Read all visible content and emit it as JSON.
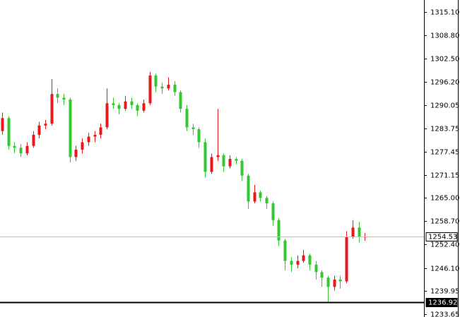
{
  "chart_data": {
    "type": "candlestick",
    "up_color": "#e8191c",
    "down_color": "#32c832",
    "ylim": [
      1232.89,
      1318.33
    ],
    "yticks": [
      {
        "value": 1315.1,
        "label": "1315.10"
      },
      {
        "value": 1308.8,
        "label": "1308.80"
      },
      {
        "value": 1302.5,
        "label": "1302.50"
      },
      {
        "value": 1296.2,
        "label": "1296.20"
      },
      {
        "value": 1290.05,
        "label": "1290.05"
      },
      {
        "value": 1283.75,
        "label": "1283.75"
      },
      {
        "value": 1277.45,
        "label": "1277.45"
      },
      {
        "value": 1271.15,
        "label": "1271.15"
      },
      {
        "value": 1265.0,
        "label": "1265.00"
      },
      {
        "value": 1258.7,
        "label": "1258.70"
      },
      {
        "value": 1252.4,
        "label": "1252.40"
      },
      {
        "value": 1246.1,
        "label": "1246.10"
      },
      {
        "value": 1239.95,
        "label": "1239.95"
      },
      {
        "value": 1233.65,
        "label": "1233.65"
      }
    ],
    "price_lines": [
      {
        "value": 1254.53,
        "color": "#c0c0c0"
      },
      {
        "value": 1236.92,
        "color": "#000000"
      }
    ],
    "ohlc": [
      [
        1283,
        1288,
        1282,
        1286.5
      ],
      [
        1286.5,
        1287,
        1278,
        1279
      ],
      [
        1279,
        1280,
        1277,
        1278.5
      ],
      [
        1278.5,
        1279.5,
        1276,
        1277
      ],
      [
        1277,
        1280,
        1276.5,
        1279
      ],
      [
        1279,
        1283,
        1278.5,
        1282
      ],
      [
        1282,
        1285.5,
        1281,
        1284.5
      ],
      [
        1284.5,
        1286,
        1283.5,
        1285
      ],
      [
        1285,
        1297,
        1284.5,
        1293
      ],
      [
        1293,
        1294.5,
        1290.5,
        1292
      ],
      [
        1292,
        1293,
        1290,
        1291.5
      ],
      [
        1291.5,
        1292,
        1274.5,
        1276
      ],
      [
        1276,
        1279,
        1275,
        1278
      ],
      [
        1278,
        1281,
        1277,
        1280
      ],
      [
        1280,
        1282.5,
        1279,
        1281.5
      ],
      [
        1281.5,
        1283,
        1280,
        1282
      ],
      [
        1282,
        1285,
        1281,
        1284
      ],
      [
        1284,
        1294.5,
        1283.5,
        1290.5
      ],
      [
        1290.5,
        1292,
        1289,
        1290
      ],
      [
        1290,
        1290.5,
        1287.5,
        1289
      ],
      [
        1289,
        1292.5,
        1288.5,
        1291
      ],
      [
        1291,
        1292,
        1289,
        1290
      ],
      [
        1290,
        1290.5,
        1287,
        1288.5
      ],
      [
        1288.5,
        1291.5,
        1288,
        1290.5
      ],
      [
        1290.5,
        1299,
        1290,
        1298
      ],
      [
        1298,
        1298.5,
        1293.5,
        1295
      ],
      [
        1295,
        1296,
        1293,
        1294.5
      ],
      [
        1294.5,
        1297.5,
        1294,
        1295.5
      ],
      [
        1295.5,
        1296.5,
        1292.5,
        1293.5
      ],
      [
        1293.5,
        1294,
        1288,
        1289
      ],
      [
        1289,
        1290,
        1283,
        1284
      ],
      [
        1284,
        1285,
        1282,
        1283.5
      ],
      [
        1283.5,
        1284,
        1278.5,
        1280
      ],
      [
        1280,
        1281,
        1270.5,
        1272
      ],
      [
        1272,
        1277,
        1271.5,
        1276
      ],
      [
        1276,
        1289,
        1275,
        1276.5
      ],
      [
        1276.5,
        1277,
        1272,
        1273.5
      ],
      [
        1273.5,
        1276.5,
        1273,
        1275.5
      ],
      [
        1275.5,
        1276,
        1274,
        1275
      ],
      [
        1275,
        1275.5,
        1269.5,
        1271
      ],
      [
        1271,
        1271.5,
        1262,
        1264
      ],
      [
        1264,
        1268.5,
        1263.5,
        1266.5
      ],
      [
        1266.5,
        1267,
        1264,
        1265
      ],
      [
        1265,
        1265.5,
        1262,
        1263.5
      ],
      [
        1263.5,
        1264,
        1257.5,
        1259
      ],
      [
        1259,
        1259.5,
        1252,
        1253.5
      ],
      [
        1253.5,
        1254,
        1245.5,
        1248
      ],
      [
        1248,
        1249,
        1245,
        1247
      ],
      [
        1247,
        1249.5,
        1246,
        1248
      ],
      [
        1248,
        1251,
        1247.5,
        1249.5
      ],
      [
        1249.5,
        1250,
        1245.5,
        1247
      ],
      [
        1247,
        1248,
        1243,
        1245
      ],
      [
        1245,
        1245.5,
        1241,
        1243.5
      ],
      [
        1243.5,
        1244,
        1237,
        1241
      ],
      [
        1241,
        1244,
        1240,
        1243
      ],
      [
        1243,
        1244,
        1240.5,
        1242.5
      ],
      [
        1242.5,
        1256,
        1242,
        1254.5
      ],
      [
        1254.5,
        1259,
        1254,
        1257
      ],
      [
        1257,
        1258.5,
        1253,
        1254.5
      ],
      [
        1254.5,
        1255.5,
        1253.5,
        1254.53
      ]
    ]
  }
}
